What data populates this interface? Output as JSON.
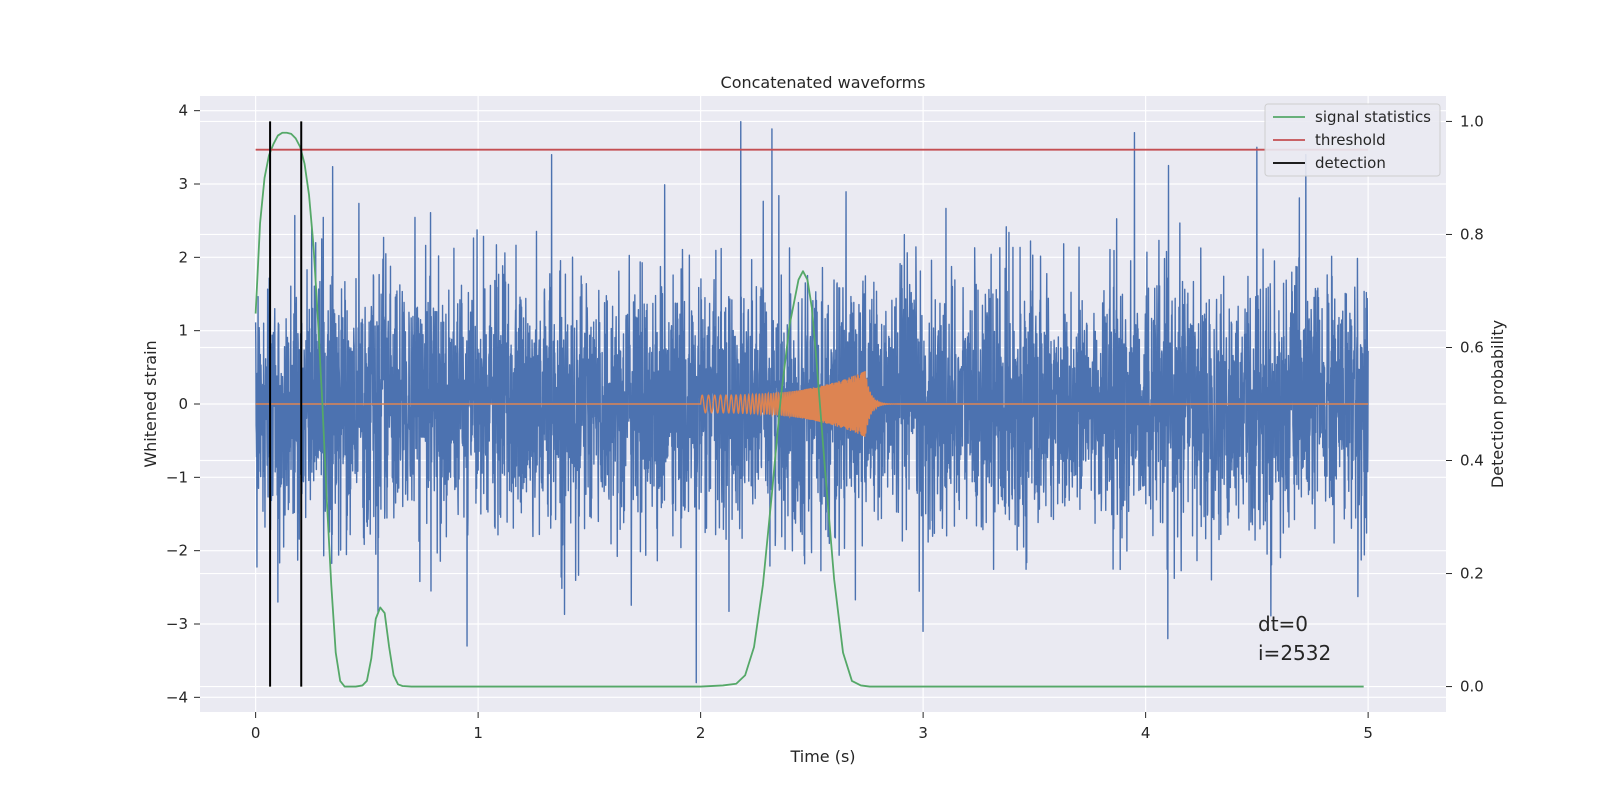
{
  "chart_data": {
    "type": "line",
    "title": "Concatenated waveforms",
    "xlabel": "Time (s)",
    "ylabel": "Whitened strain",
    "y2label": "Detection probability",
    "xlim": [
      -0.25,
      5.35
    ],
    "ylim": [
      -4.2,
      4.2
    ],
    "y2lim": [
      -0.045,
      1.045
    ],
    "xticks": [
      0,
      1,
      2,
      3,
      4,
      5
    ],
    "yticks": [
      -4,
      -3,
      -2,
      -1,
      0,
      1,
      2,
      3,
      4
    ],
    "y2ticks": [
      0.0,
      0.2,
      0.4,
      0.6,
      0.8,
      1.0
    ],
    "grid": true,
    "legend_position": "top-right",
    "annotation": [
      "dt=0",
      "i=2532"
    ],
    "series": [
      {
        "name": "",
        "axis": "left",
        "color": "#4c72b0",
        "kind": "noise",
        "x_range": [
          0,
          5
        ],
        "points": 5000,
        "std": 0.85,
        "max": 3.85,
        "min": -3.8,
        "spikes": [
          [
            0.1,
            -2.7
          ],
          [
            0.27,
            2.2
          ],
          [
            0.95,
            -3.3
          ],
          [
            1.33,
            3.4
          ],
          [
            1.98,
            -3.8
          ],
          [
            2.18,
            3.85
          ],
          [
            2.32,
            3.75
          ],
          [
            3.0,
            -3.1
          ],
          [
            3.95,
            3.7
          ],
          [
            4.1,
            -3.2
          ],
          [
            4.5,
            3.5
          ],
          [
            4.72,
            3.4
          ]
        ]
      },
      {
        "name": "",
        "axis": "left",
        "color": "#dd8452",
        "kind": "chirp",
        "x_range": [
          0,
          5
        ],
        "start": 2.0,
        "peak_time": 2.74,
        "end": 2.9,
        "amp_start": 0.12,
        "amp_peak": 0.45
      },
      {
        "name": "signal statistics",
        "axis": "right",
        "color": "#55a868",
        "x": [
          0.0,
          0.02,
          0.04,
          0.06,
          0.08,
          0.1,
          0.12,
          0.14,
          0.16,
          0.18,
          0.2,
          0.22,
          0.24,
          0.26,
          0.28,
          0.3,
          0.32,
          0.34,
          0.36,
          0.38,
          0.4,
          0.42,
          0.45,
          0.48,
          0.5,
          0.52,
          0.54,
          0.56,
          0.58,
          0.6,
          0.62,
          0.64,
          0.66,
          0.7,
          0.8,
          1.0,
          1.5,
          2.0,
          2.1,
          2.16,
          2.2,
          2.24,
          2.28,
          2.32,
          2.36,
          2.4,
          2.44,
          2.46,
          2.48,
          2.5,
          2.52,
          2.56,
          2.6,
          2.64,
          2.68,
          2.72,
          2.76,
          2.8,
          3.0,
          4.0,
          4.98
        ],
        "values": [
          0.66,
          0.82,
          0.9,
          0.94,
          0.96,
          0.975,
          0.98,
          0.98,
          0.978,
          0.97,
          0.955,
          0.925,
          0.87,
          0.78,
          0.65,
          0.5,
          0.33,
          0.18,
          0.06,
          0.01,
          0.0,
          0.0,
          0.0,
          0.002,
          0.01,
          0.05,
          0.12,
          0.14,
          0.13,
          0.07,
          0.02,
          0.004,
          0.001,
          0.0,
          0.0,
          0.0,
          0.0,
          0.0,
          0.002,
          0.005,
          0.02,
          0.07,
          0.18,
          0.34,
          0.51,
          0.64,
          0.72,
          0.735,
          0.72,
          0.67,
          0.58,
          0.38,
          0.19,
          0.06,
          0.01,
          0.002,
          0.0,
          0.0,
          0.0,
          0.0,
          0.0
        ]
      },
      {
        "name": "threshold",
        "axis": "right",
        "color": "#c44e52",
        "x": [
          0,
          5
        ],
        "values": [
          0.95,
          0.95
        ]
      },
      {
        "name": "detection",
        "axis": "right",
        "color": "#000000",
        "kind": "vlines",
        "x": [
          0.065,
          0.205
        ],
        "ymin": 0.0,
        "ymax": 1.0
      }
    ]
  }
}
